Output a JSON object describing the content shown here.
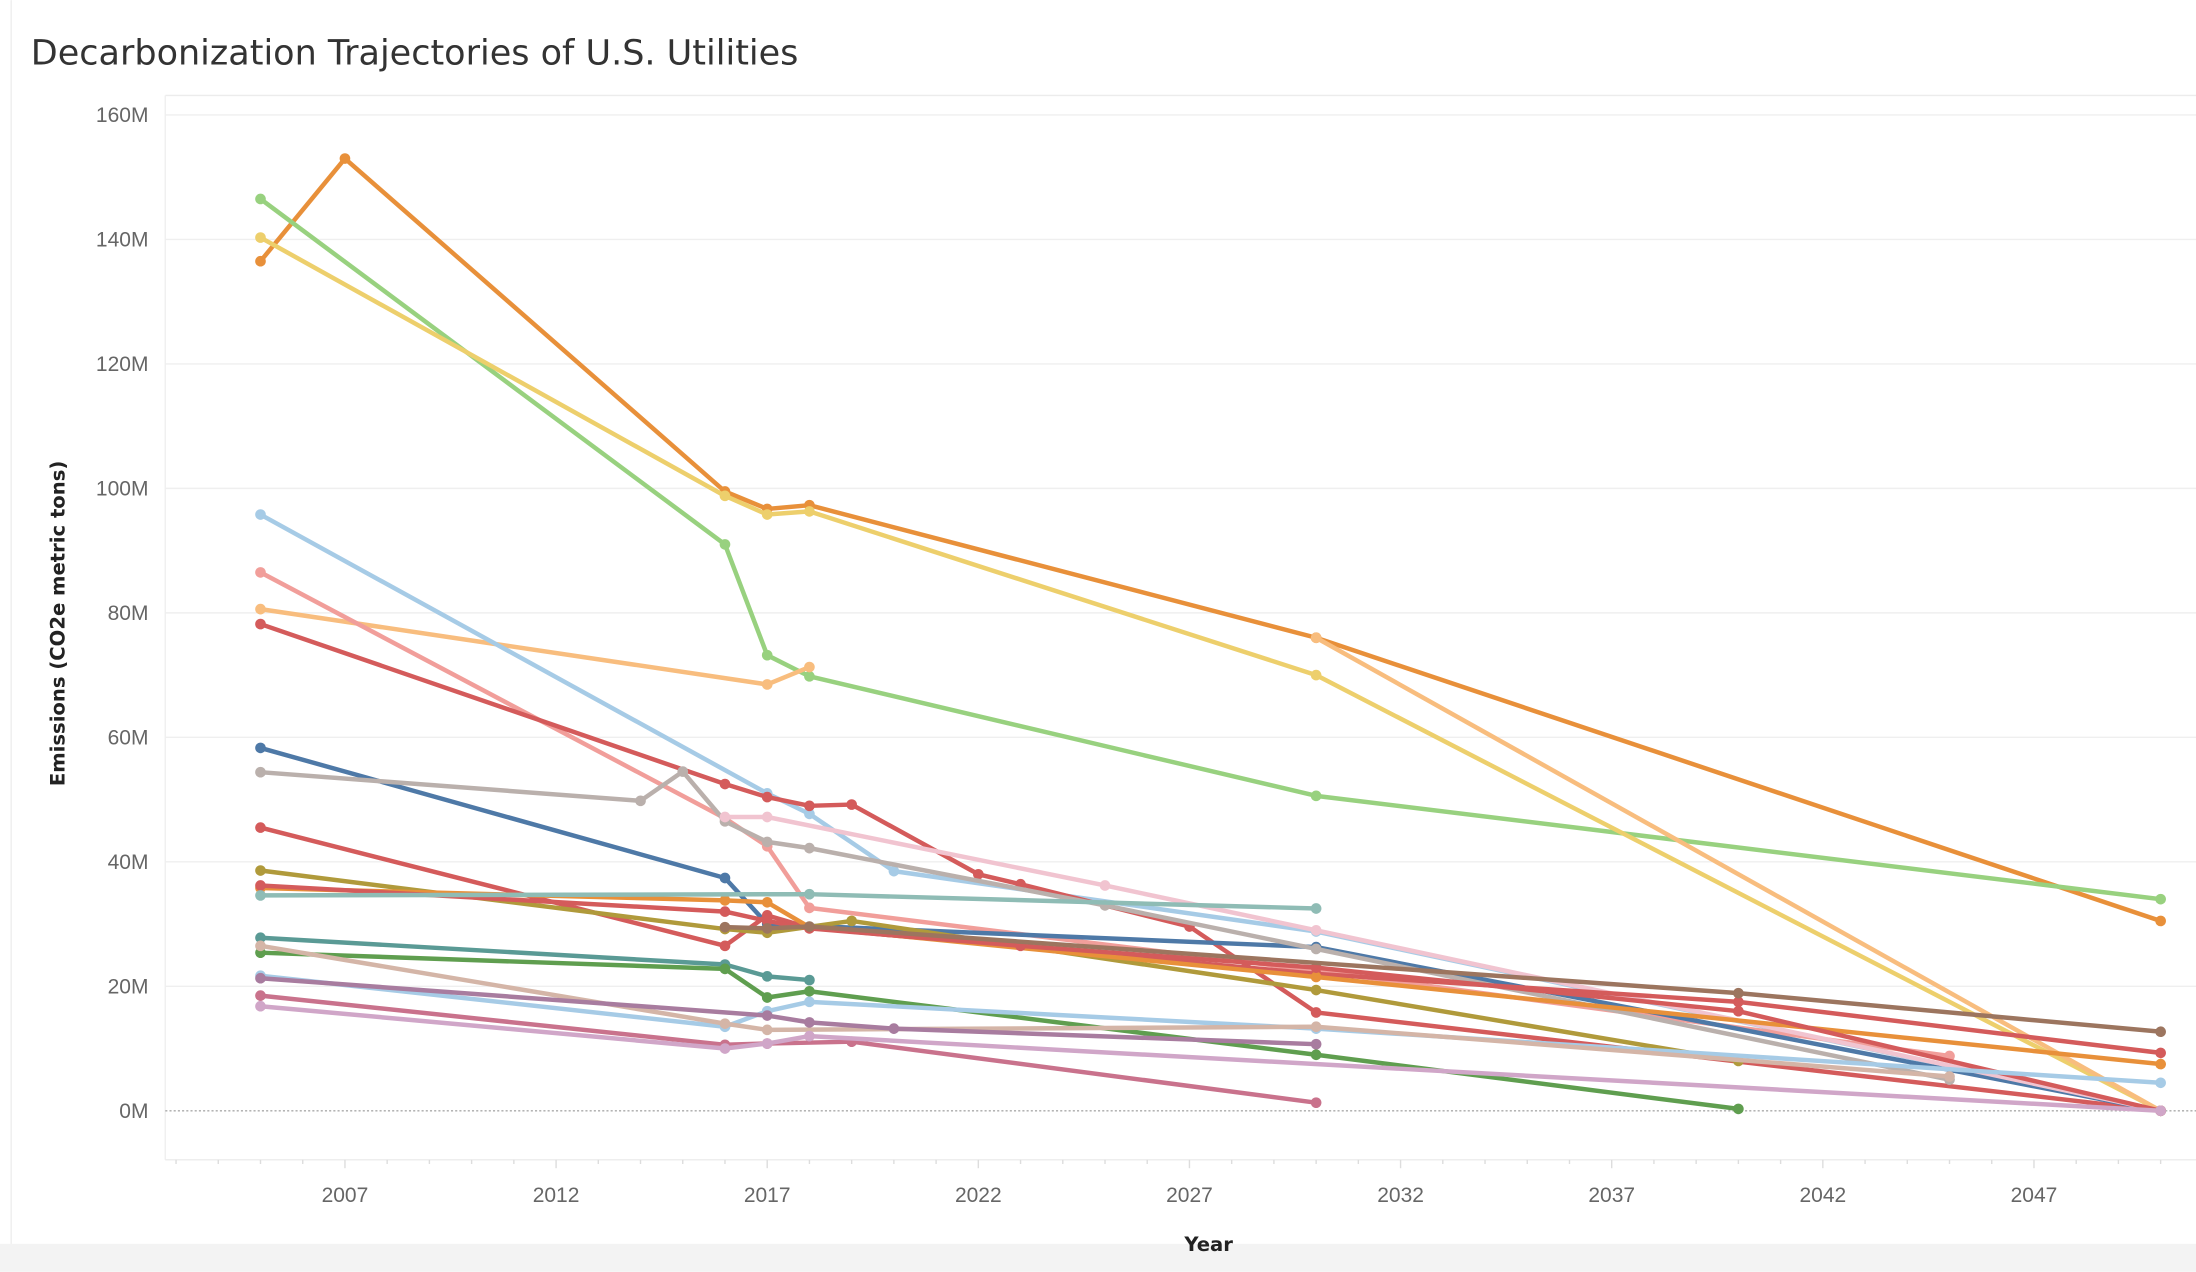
{
  "chart_data": {
    "type": "line",
    "title": "Decarbonization Trajectories of  U.S. Utilities",
    "xlabel": "Year",
    "ylabel": "Emissions (CO2e metric tons)",
    "xlim": [
      2003,
      2051
    ],
    "ylim": [
      -8,
      162
    ],
    "x_ticks": [
      "2007",
      "2012",
      "2017",
      "2022",
      "2027",
      "2032",
      "2037",
      "2042",
      "2047"
    ],
    "y_ticks": [
      "0M",
      "20M",
      "40M",
      "60M",
      "80M",
      "100M",
      "120M",
      "140M",
      "160M"
    ],
    "grid": "horizontal",
    "zero_line": "dotted",
    "legend": "none",
    "series": [
      {
        "color": "#e8903a",
        "points": [
          [
            2005,
            136.5
          ],
          [
            2007,
            153
          ],
          [
            2016,
            99.5
          ],
          [
            2017,
            96.7
          ],
          [
            2018,
            97.3
          ],
          [
            2030,
            76
          ],
          [
            2050,
            30.5
          ]
        ]
      },
      {
        "color": "#98d17f",
        "points": [
          [
            2005,
            146.5
          ],
          [
            2016,
            91
          ],
          [
            2017,
            73.2
          ],
          [
            2018,
            69.8
          ],
          [
            2030,
            50.6
          ],
          [
            2050,
            34
          ]
        ]
      },
      {
        "color": "#edcf6c",
        "points": [
          [
            2005,
            140.3
          ],
          [
            2016,
            98.8
          ],
          [
            2017,
            95.8
          ],
          [
            2018,
            96.3
          ],
          [
            2030,
            70
          ],
          [
            2050,
            0
          ]
        ]
      },
      {
        "color": "#f8bd7e",
        "points": [
          [
            2005,
            80.6
          ],
          [
            2017,
            68.5
          ],
          [
            2018,
            71.3
          ]
        ]
      },
      {
        "color": "#f8bd7e",
        "points": [
          [
            2030,
            76
          ],
          [
            2050,
            0
          ]
        ]
      },
      {
        "color": "#a6cbe6",
        "points": [
          [
            2005,
            95.8
          ],
          [
            2017,
            51
          ],
          [
            2018,
            47.7
          ],
          [
            2020,
            38.5
          ],
          [
            2030,
            28.8
          ],
          [
            2050,
            0
          ]
        ]
      },
      {
        "color": "#f19e9a",
        "points": [
          [
            2005,
            86.5
          ],
          [
            2016,
            47
          ],
          [
            2017,
            42.5
          ],
          [
            2018,
            32.6
          ],
          [
            2030,
            22.5
          ],
          [
            2045,
            8.8
          ]
        ]
      },
      {
        "color": "#d45b5b",
        "points": [
          [
            2005,
            78.2
          ],
          [
            2016,
            52.5
          ],
          [
            2017,
            50.4
          ],
          [
            2018,
            49
          ],
          [
            2019,
            49.2
          ],
          [
            2022,
            38
          ],
          [
            2023,
            36.4
          ],
          [
            2027,
            29.6
          ],
          [
            2030,
            15.8
          ],
          [
            2050,
            0
          ]
        ]
      },
      {
        "color": "#4e79a7",
        "points": [
          [
            2005,
            58.3
          ],
          [
            2016,
            37.4
          ],
          [
            2017,
            30
          ],
          [
            2030,
            26.3
          ],
          [
            2050,
            0
          ]
        ]
      },
      {
        "color": "#bab0ac",
        "points": [
          [
            2005,
            54.4
          ],
          [
            2014,
            49.8
          ],
          [
            2015,
            54.5
          ],
          [
            2016,
            46.5
          ],
          [
            2017,
            43.2
          ],
          [
            2018,
            42.2
          ],
          [
            2025,
            33
          ],
          [
            2030,
            26
          ],
          [
            2045,
            5
          ]
        ]
      },
      {
        "color": "#f1c4d0",
        "points": [
          [
            2016,
            47.2
          ],
          [
            2017,
            47.2
          ],
          [
            2025,
            36.2
          ],
          [
            2030,
            29
          ],
          [
            2050,
            0
          ]
        ]
      },
      {
        "color": "#d45b5b",
        "points": [
          [
            2005,
            45.5
          ],
          [
            2016,
            26.5
          ],
          [
            2017,
            31.4
          ],
          [
            2018,
            29.4
          ],
          [
            2030,
            22
          ],
          [
            2040,
            17.5
          ],
          [
            2050,
            9.3
          ]
        ]
      },
      {
        "color": "#b09a3b",
        "points": [
          [
            2005,
            38.6
          ],
          [
            2016,
            29.2
          ],
          [
            2017,
            28.6
          ],
          [
            2019,
            30.5
          ],
          [
            2030,
            19.4
          ],
          [
            2040,
            8
          ]
        ]
      },
      {
        "color": "#e8903a",
        "points": [
          [
            2005,
            35.8
          ],
          [
            2016,
            33.8
          ],
          [
            2017,
            33.5
          ],
          [
            2018,
            29.5
          ],
          [
            2030,
            21.5
          ],
          [
            2050,
            7.5
          ]
        ]
      },
      {
        "color": "#d45b5b",
        "points": [
          [
            2005,
            36.2
          ],
          [
            2016,
            32
          ],
          [
            2017,
            30.5
          ],
          [
            2018,
            29.3
          ],
          [
            2023,
            26.5
          ],
          [
            2030,
            23
          ],
          [
            2040,
            16
          ],
          [
            2050,
            0
          ]
        ]
      },
      {
        "color": "#8fbcb5",
        "points": [
          [
            2005,
            34.6
          ],
          [
            2018,
            34.8
          ],
          [
            2030,
            32.5
          ]
        ]
      },
      {
        "color": "#5a9a95",
        "points": [
          [
            2005,
            27.8
          ],
          [
            2016,
            23.5
          ],
          [
            2017,
            21.6
          ],
          [
            2018,
            21
          ]
        ]
      },
      {
        "color": "#5f9e4f",
        "points": [
          [
            2005,
            25.4
          ],
          [
            2016,
            22.8
          ],
          [
            2017,
            18.2
          ],
          [
            2018,
            19.2
          ],
          [
            2030,
            9
          ],
          [
            2040,
            0.3
          ]
        ]
      },
      {
        "color": "#a6cbe6",
        "points": [
          [
            2005,
            21.7
          ],
          [
            2016,
            13.5
          ],
          [
            2017,
            16
          ],
          [
            2018,
            17.5
          ],
          [
            2030,
            13.2
          ],
          [
            2050,
            4.5
          ]
        ]
      },
      {
        "color": "#d4b5a7",
        "points": [
          [
            2005,
            26.5
          ],
          [
            2016,
            14
          ],
          [
            2017,
            13
          ],
          [
            2030,
            13.5
          ],
          [
            2045,
            5.5
          ]
        ]
      },
      {
        "color": "#a87c9f",
        "points": [
          [
            2005,
            21.3
          ],
          [
            2017,
            15.3
          ],
          [
            2018,
            14.2
          ],
          [
            2020,
            13.2
          ],
          [
            2030,
            10.7
          ]
        ]
      },
      {
        "color": "#c9728c",
        "points": [
          [
            2005,
            18.5
          ],
          [
            2016,
            10.6
          ],
          [
            2017,
            10.8
          ],
          [
            2019,
            11.1
          ],
          [
            2030,
            1.3
          ]
        ]
      },
      {
        "color": "#d0a6c8",
        "points": [
          [
            2005,
            16.8
          ],
          [
            2016,
            10
          ],
          [
            2017,
            10.8
          ],
          [
            2018,
            12
          ],
          [
            2050,
            0
          ]
        ]
      },
      {
        "color": "#9c755f",
        "points": [
          [
            2016,
            29.5
          ],
          [
            2017,
            29.3
          ],
          [
            2018,
            29.6
          ],
          [
            2040,
            18.9
          ],
          [
            2050,
            12.7
          ]
        ]
      }
    ]
  }
}
